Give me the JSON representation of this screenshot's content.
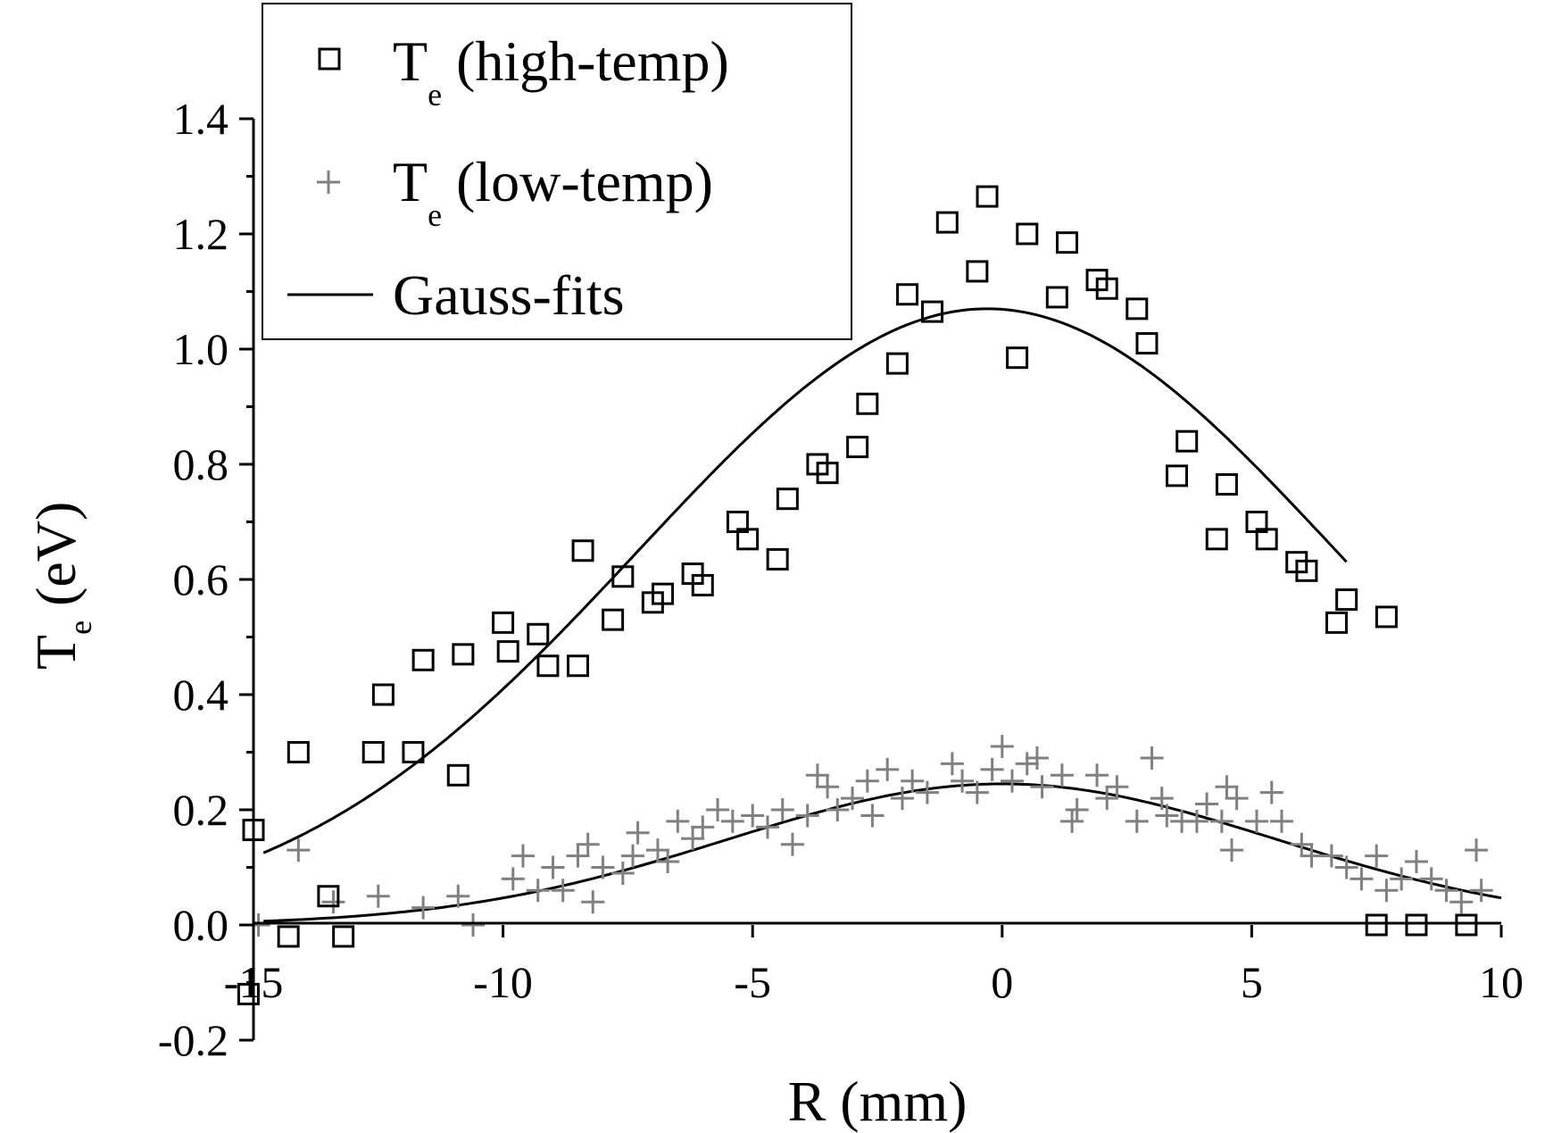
{
  "chart_data": {
    "type": "scatter",
    "title": "",
    "xlabel": "R (mm)",
    "ylabel_main": "T",
    "ylabel_sub": "e",
    "ylabel_rest": " (eV)",
    "xlim": [
      -15,
      10
    ],
    "ylim": [
      -0.2,
      1.4
    ],
    "x_ticks": [
      -15,
      -10,
      -5,
      0,
      5,
      10
    ],
    "x_tick_labels": [
      "-15",
      "-10",
      "-5",
      "0",
      "5",
      "10"
    ],
    "y_ticks": [
      -0.2,
      0.0,
      0.2,
      0.4,
      0.6,
      0.8,
      1.0,
      1.2,
      1.4
    ],
    "y_tick_labels": [
      "-0.2",
      "0.0",
      "0.2",
      "0.4",
      "0.6",
      "0.8",
      "1.0",
      "1.2",
      "1.4"
    ],
    "grid": false,
    "legend_position": "top-left",
    "legend": [
      {
        "marker": "square",
        "main": "T",
        "sub": "e",
        "rest": " (high-temp)"
      },
      {
        "marker": "plus",
        "main": "T",
        "sub": "e",
        "rest": " (low-temp)"
      },
      {
        "marker": "line",
        "main": "Gauss-fits",
        "sub": "",
        "rest": ""
      }
    ],
    "colors": {
      "high": "#000000",
      "low": "#808080",
      "fit": "#000000"
    },
    "series": [
      {
        "name": "Te (high-temp)",
        "marker": "square",
        "points": [
          [
            -15.0,
            0.165
          ],
          [
            -15.1,
            -0.12
          ],
          [
            -14.3,
            -0.02
          ],
          [
            -14.1,
            0.3
          ],
          [
            -13.5,
            0.05
          ],
          [
            -13.2,
            -0.02
          ],
          [
            -12.6,
            0.3
          ],
          [
            -12.4,
            0.4
          ],
          [
            -11.8,
            0.3
          ],
          [
            -11.6,
            0.46
          ],
          [
            -10.9,
            0.26
          ],
          [
            -10.8,
            0.47
          ],
          [
            -10.0,
            0.525
          ],
          [
            -9.9,
            0.475
          ],
          [
            -9.3,
            0.505
          ],
          [
            -9.1,
            0.45
          ],
          [
            -8.5,
            0.45
          ],
          [
            -8.4,
            0.65
          ],
          [
            -7.8,
            0.53
          ],
          [
            -7.6,
            0.605
          ],
          [
            -7.0,
            0.56
          ],
          [
            -6.8,
            0.575
          ],
          [
            -6.2,
            0.61
          ],
          [
            -6.0,
            0.59
          ],
          [
            -5.3,
            0.7
          ],
          [
            -5.1,
            0.67
          ],
          [
            -4.5,
            0.635
          ],
          [
            -4.3,
            0.74
          ],
          [
            -3.7,
            0.8
          ],
          [
            -3.5,
            0.785
          ],
          [
            -2.9,
            0.83
          ],
          [
            -2.7,
            0.905
          ],
          [
            -2.1,
            0.975
          ],
          [
            -1.9,
            1.095
          ],
          [
            -1.4,
            1.065
          ],
          [
            -1.1,
            1.22
          ],
          [
            -0.5,
            1.135
          ],
          [
            -0.3,
            1.265
          ],
          [
            0.3,
            0.985
          ],
          [
            0.5,
            1.2
          ],
          [
            1.1,
            1.09
          ],
          [
            1.3,
            1.185
          ],
          [
            1.9,
            1.12
          ],
          [
            2.1,
            1.105
          ],
          [
            2.7,
            1.07
          ],
          [
            2.9,
            1.01
          ],
          [
            3.5,
            0.78
          ],
          [
            3.7,
            0.84
          ],
          [
            4.3,
            0.67
          ],
          [
            4.5,
            0.765
          ],
          [
            5.1,
            0.7
          ],
          [
            5.3,
            0.67
          ],
          [
            5.9,
            0.63
          ],
          [
            6.1,
            0.615
          ],
          [
            6.7,
            0.525
          ],
          [
            6.9,
            0.565
          ],
          [
            7.5,
            0.0
          ],
          [
            7.7,
            0.535
          ],
          [
            8.3,
            0.0
          ],
          [
            9.3,
            0.0
          ]
        ]
      },
      {
        "name": "Te (low-temp)",
        "marker": "plus",
        "points": [
          [
            -14.9,
            0.0
          ],
          [
            -14.1,
            0.13
          ],
          [
            -13.4,
            0.04
          ],
          [
            -12.5,
            0.05
          ],
          [
            -11.6,
            0.03
          ],
          [
            -10.9,
            0.05
          ],
          [
            -10.6,
            0.0
          ],
          [
            -9.8,
            0.08
          ],
          [
            -9.6,
            0.12
          ],
          [
            -9.3,
            0.06
          ],
          [
            -9.0,
            0.1
          ],
          [
            -8.8,
            0.06
          ],
          [
            -8.5,
            0.12
          ],
          [
            -8.3,
            0.14
          ],
          [
            -8.2,
            0.04
          ],
          [
            -8.0,
            0.1
          ],
          [
            -7.6,
            0.09
          ],
          [
            -7.4,
            0.12
          ],
          [
            -7.3,
            0.16
          ],
          [
            -6.9,
            0.13
          ],
          [
            -6.7,
            0.11
          ],
          [
            -6.5,
            0.18
          ],
          [
            -6.2,
            0.15
          ],
          [
            -6.0,
            0.17
          ],
          [
            -5.7,
            0.2
          ],
          [
            -5.4,
            0.18
          ],
          [
            -5.0,
            0.19
          ],
          [
            -4.7,
            0.17
          ],
          [
            -4.4,
            0.2
          ],
          [
            -4.2,
            0.14
          ],
          [
            -3.9,
            0.19
          ],
          [
            -3.7,
            0.26
          ],
          [
            -3.5,
            0.24
          ],
          [
            -3.3,
            0.2
          ],
          [
            -3.0,
            0.22
          ],
          [
            -2.7,
            0.25
          ],
          [
            -2.6,
            0.19
          ],
          [
            -2.3,
            0.27
          ],
          [
            -2.0,
            0.22
          ],
          [
            -1.8,
            0.25
          ],
          [
            -1.5,
            0.23
          ],
          [
            -1.0,
            0.28
          ],
          [
            -0.8,
            0.25
          ],
          [
            -0.5,
            0.23
          ],
          [
            -0.2,
            0.27
          ],
          [
            0.0,
            0.31
          ],
          [
            0.2,
            0.25
          ],
          [
            0.5,
            0.28
          ],
          [
            0.8,
            0.24
          ],
          [
            0.7,
            0.29
          ],
          [
            1.2,
            0.26
          ],
          [
            1.5,
            0.2
          ],
          [
            1.4,
            0.18
          ],
          [
            1.9,
            0.26
          ],
          [
            2.1,
            0.22
          ],
          [
            2.3,
            0.24
          ],
          [
            2.7,
            0.18
          ],
          [
            3.0,
            0.29
          ],
          [
            3.2,
            0.22
          ],
          [
            3.3,
            0.19
          ],
          [
            3.6,
            0.18
          ],
          [
            3.9,
            0.18
          ],
          [
            4.1,
            0.21
          ],
          [
            4.4,
            0.18
          ],
          [
            4.5,
            0.24
          ],
          [
            4.7,
            0.22
          ],
          [
            4.6,
            0.13
          ],
          [
            5.1,
            0.18
          ],
          [
            5.4,
            0.23
          ],
          [
            5.6,
            0.18
          ],
          [
            6.0,
            0.14
          ],
          [
            6.2,
            0.12
          ],
          [
            6.6,
            0.12
          ],
          [
            6.9,
            0.1
          ],
          [
            7.2,
            0.08
          ],
          [
            7.5,
            0.12
          ],
          [
            7.7,
            0.06
          ],
          [
            8.0,
            0.08
          ],
          [
            8.3,
            0.11
          ],
          [
            8.6,
            0.08
          ],
          [
            8.9,
            0.06
          ],
          [
            9.2,
            0.04
          ],
          [
            9.5,
            0.13
          ],
          [
            9.6,
            0.06
          ]
        ]
      },
      {
        "name": "Gauss-fit (high-temp)",
        "marker": "line",
        "gauss": {
          "amplitude": 1.07,
          "center": -0.3,
          "sigma": 7.0,
          "offset": 0.0,
          "x_range": [
            -14.8,
            6.9
          ]
        }
      },
      {
        "name": "Gauss-fit (low-temp)",
        "marker": "line",
        "gauss": {
          "amplitude": 0.245,
          "center": 0.0,
          "sigma": 5.5,
          "offset": 0.0,
          "x_range": [
            -14.8,
            10.0
          ]
        }
      }
    ]
  }
}
